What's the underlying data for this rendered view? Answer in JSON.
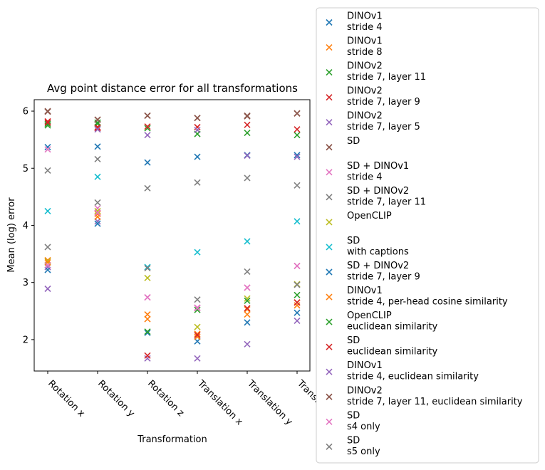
{
  "chart_data": {
    "type": "scatter",
    "title": "Avg point distance error for all transformations",
    "xlabel": "Transformation",
    "ylabel": "Mean (log) error",
    "categories": [
      "Rotation x",
      "Rotation y",
      "Rotation z",
      "Translation x",
      "Translation y",
      "Translation z"
    ],
    "ylim": [
      1.45,
      6.2
    ],
    "yticks": [
      "2",
      "3",
      "4",
      "5",
      "6"
    ],
    "marker": "x",
    "grid": false,
    "legend_position": "right, outside plot",
    "series": [
      {
        "name": [
          "DINOv1",
          "stride 4"
        ],
        "color": "#1f77b4",
        "values": [
          5.37,
          5.38,
          5.1,
          5.2,
          5.23,
          5.23
        ]
      },
      {
        "name": [
          "DINOv1",
          "stride 8"
        ],
        "color": "#ff7f0e",
        "values": [
          3.39,
          4.2,
          2.44,
          2.1,
          2.53,
          2.65
        ]
      },
      {
        "name": [
          "DINOv2",
          "stride 7, layer 11"
        ],
        "color": "#2ca02c",
        "values": [
          5.78,
          5.78,
          5.7,
          5.6,
          5.62,
          5.58
        ]
      },
      {
        "name": [
          "DINOv2",
          "stride 7, layer 9"
        ],
        "color": "#d62728",
        "values": [
          5.82,
          5.72,
          5.73,
          5.72,
          5.76,
          5.68
        ]
      },
      {
        "name": [
          "DINOv2",
          "stride 7, layer 5"
        ],
        "color": "#9467bd",
        "values": [
          3.27,
          4.07,
          1.67,
          1.67,
          1.92,
          2.33
        ]
      },
      {
        "name": [
          "SD"
        ],
        "color": "#8c564b",
        "values": [
          5.99,
          5.85,
          5.92,
          5.88,
          5.91,
          5.96
        ]
      },
      {
        "name": [
          "SD + DINOv1",
          "stride 4"
        ],
        "color": "#e377c2",
        "values": [
          5.33,
          4.3,
          2.74,
          2.56,
          2.91,
          3.29
        ]
      },
      {
        "name": [
          "SD + DINOv2",
          "stride 7, layer 11"
        ],
        "color": "#7f7f7f",
        "values": [
          4.96,
          5.16,
          4.65,
          4.75,
          4.83,
          4.7
        ]
      },
      {
        "name": [
          "OpenCLIP"
        ],
        "color": "#bcbd22",
        "values": [
          3.37,
          4.25,
          3.08,
          2.22,
          2.72,
          2.97
        ]
      },
      {
        "name": [
          "SD",
          "with captions"
        ],
        "color": "#17becf",
        "values": [
          4.25,
          4.85,
          3.27,
          3.53,
          3.72,
          4.07
        ]
      },
      {
        "name": [
          "SD + DINOv2",
          "stride 7, layer 9"
        ],
        "color": "#1f77b4",
        "values": [
          3.22,
          4.03,
          2.12,
          1.97,
          2.3,
          2.47
        ]
      },
      {
        "name": [
          "DINOv1",
          "stride 4, per-head cosine similarity"
        ],
        "color": "#ff7f0e",
        "values": [
          3.35,
          4.15,
          2.36,
          2.05,
          2.44,
          2.6
        ]
      },
      {
        "name": [
          "OpenCLIP",
          "euclidean similarity"
        ],
        "color": "#2ca02c",
        "values": [
          5.75,
          5.8,
          2.14,
          2.52,
          2.68,
          2.78
        ]
      },
      {
        "name": [
          "SD",
          "euclidean similarity"
        ],
        "color": "#d62728",
        "values": [
          5.8,
          5.7,
          1.72,
          2.08,
          2.55,
          2.65
        ]
      },
      {
        "name": [
          "DINOv1",
          "stride 4, euclidean similarity"
        ],
        "color": "#9467bd",
        "values": [
          2.89,
          5.68,
          5.58,
          5.67,
          5.22,
          5.2
        ]
      },
      {
        "name": [
          "DINOv2",
          "stride 7, layer 11, euclidean similarity"
        ],
        "color": "#8c564b",
        "values": [
          6.0,
          5.85,
          5.92,
          5.88,
          5.92,
          5.96
        ]
      },
      {
        "name": [
          "SD",
          "s4 only"
        ],
        "color": "#e377c2",
        "values": [
          3.3,
          4.22,
          2.74,
          2.55,
          2.91,
          3.29
        ]
      },
      {
        "name": [
          "SD",
          "s5 only"
        ],
        "color": "#7f7f7f",
        "values": [
          3.62,
          4.4,
          3.25,
          2.7,
          3.19,
          2.96
        ]
      }
    ]
  }
}
